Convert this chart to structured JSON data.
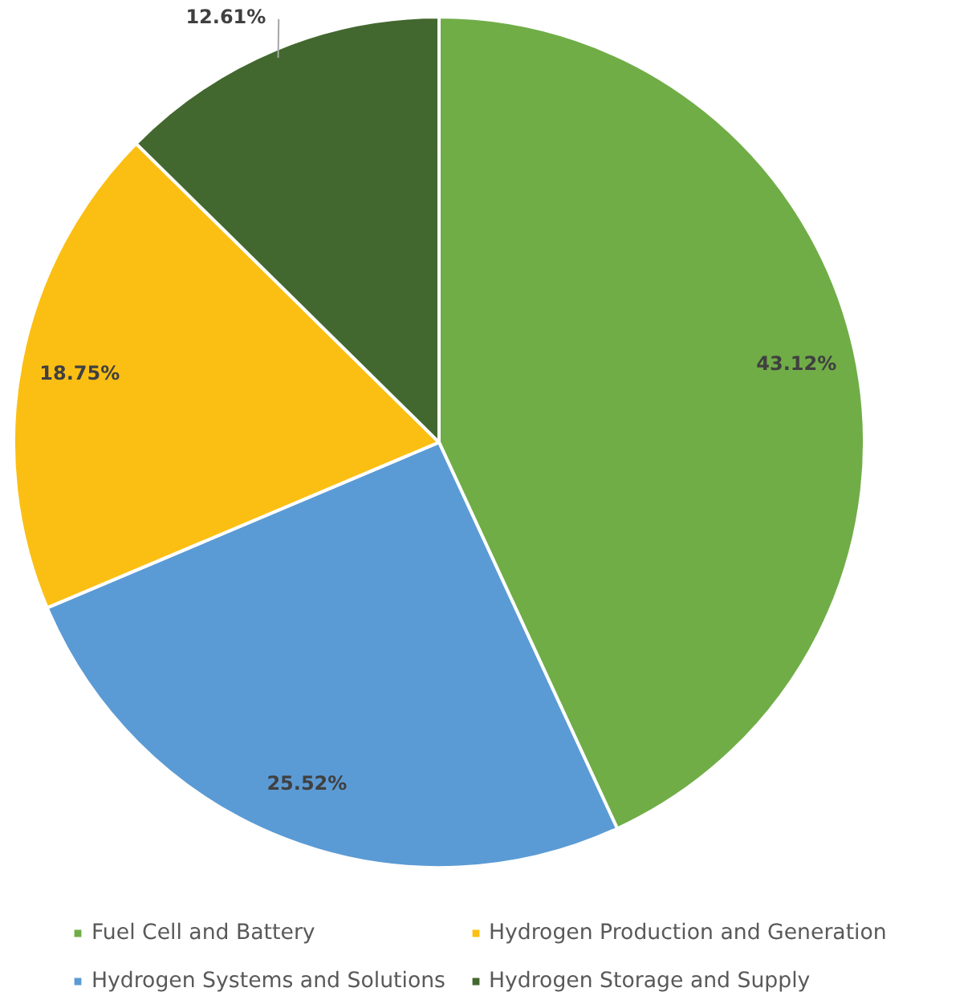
{
  "chart_data": {
    "type": "pie",
    "categories": [
      "Fuel Cell and Battery",
      "Hydrogen Systems and Solutions",
      "Hydrogen Production and Generation",
      "Hydrogen Storage and Supply"
    ],
    "values": [
      43.12,
      25.52,
      18.75,
      12.61
    ],
    "colors": [
      "#70ad47",
      "#5b9bd5",
      "#fbbf14",
      "#43682f"
    ],
    "value_labels": [
      "43.12%",
      "25.52%",
      "18.75%",
      "12.61%"
    ],
    "legend": "bottom"
  }
}
